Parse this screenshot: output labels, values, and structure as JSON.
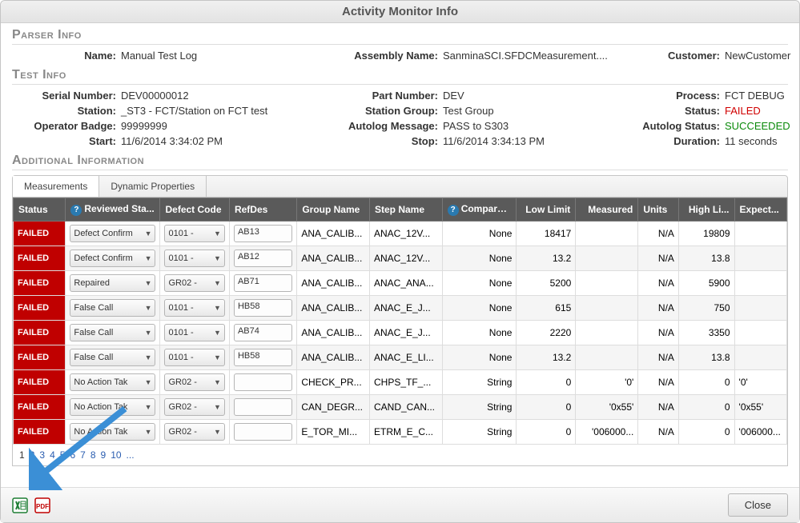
{
  "dialog": {
    "title": "Activity Monitor Info"
  },
  "sections": {
    "parser": "Parser Info",
    "test": "Test Info",
    "additional": "Additional Information"
  },
  "parser": {
    "name_label": "Name:",
    "name": "Manual Test Log",
    "assembly_label": "Assembly Name:",
    "assembly": "SanminaSCI.SFDCMeasurement....",
    "customer_label": "Customer:",
    "customer": "NewCustomer"
  },
  "test": {
    "serial_label": "Serial Number:",
    "serial": "DEV00000012",
    "part_label": "Part Number:",
    "part": "DEV",
    "process_label": "Process:",
    "process": "FCT DEBUG",
    "station_label": "Station:",
    "station": "_ST3 - FCT/Station on FCT test",
    "stationgroup_label": "Station Group:",
    "stationgroup": "Test Group",
    "status_label": "Status:",
    "status": "FAILED",
    "badge_label": "Operator Badge:",
    "badge": "99999999",
    "autolog_msg_label": "Autolog Message:",
    "autolog_msg": "PASS to S303",
    "autolog_status_label": "Autolog Status:",
    "autolog_status": "SUCCEEDED",
    "start_label": "Start:",
    "start": "11/6/2014 3:34:02 PM",
    "stop_label": "Stop:",
    "stop": "11/6/2014 3:34:13 PM",
    "duration_label": "Duration:",
    "duration": "11 seconds"
  },
  "tabs": {
    "measurements": "Measurements",
    "dynamic": "Dynamic Properties"
  },
  "columns": {
    "status": "Status",
    "reviewed": "Reviewed Sta...",
    "defect": "Defect Code",
    "refdes": "RefDes",
    "group": "Group Name",
    "step": "Step Name",
    "comparat": "Comparat...",
    "low": "Low Limit",
    "measured": "Measured",
    "units": "Units",
    "high": "High Li...",
    "expect": "Expect..."
  },
  "column_widths": {
    "status": 62,
    "reviewed": 112,
    "defect": 82,
    "refdes": 80,
    "group": 86,
    "step": 86,
    "comparat": 88,
    "low": 70,
    "measured": 74,
    "units": 48,
    "high": 66,
    "expect": 62
  },
  "status_colors": {
    "failed_bg": "#c00000",
    "failed_fg": "#ffffff"
  },
  "rows": [
    {
      "status": "FAILED",
      "reviewed": "Defect Confirm",
      "defect": "0101 -",
      "refdes": "AB13",
      "group": "ANA_CALIB...",
      "step": "ANAC_12V...",
      "comparat": "None",
      "low": "18417",
      "measured": "",
      "units": "N/A",
      "high": "19809",
      "expect": ""
    },
    {
      "status": "FAILED",
      "reviewed": "Defect Confirm",
      "defect": "0101 -",
      "refdes": "AB12",
      "group": "ANA_CALIB...",
      "step": "ANAC_12V...",
      "comparat": "None",
      "low": "13.2",
      "measured": "",
      "units": "N/A",
      "high": "13.8",
      "expect": ""
    },
    {
      "status": "FAILED",
      "reviewed": "Repaired",
      "defect": "GR02 -",
      "refdes": "AB71",
      "group": "ANA_CALIB...",
      "step": "ANAC_ANA...",
      "comparat": "None",
      "low": "5200",
      "measured": "",
      "units": "N/A",
      "high": "5900",
      "expect": ""
    },
    {
      "status": "FAILED",
      "reviewed": "False Call",
      "defect": "0101 -",
      "refdes": "HB58",
      "group": "ANA_CALIB...",
      "step": "ANAC_E_J...",
      "comparat": "None",
      "low": "615",
      "measured": "",
      "units": "N/A",
      "high": "750",
      "expect": ""
    },
    {
      "status": "FAILED",
      "reviewed": "False Call",
      "defect": "0101 -",
      "refdes": "AB74",
      "group": "ANA_CALIB...",
      "step": "ANAC_E_J...",
      "comparat": "None",
      "low": "2220",
      "measured": "",
      "units": "N/A",
      "high": "3350",
      "expect": ""
    },
    {
      "status": "FAILED",
      "reviewed": "False Call",
      "defect": "0101 -",
      "refdes": "HB58",
      "group": "ANA_CALIB...",
      "step": "ANAC_E_LI...",
      "comparat": "None",
      "low": "13.2",
      "measured": "",
      "units": "N/A",
      "high": "13.8",
      "expect": ""
    },
    {
      "status": "FAILED",
      "reviewed": "No Action Tak",
      "defect": "GR02 -",
      "refdes": "",
      "group": "CHECK_PR...",
      "step": "CHPS_TF_...",
      "comparat": "String",
      "low": "0",
      "measured": "'0'",
      "units": "N/A",
      "high": "0",
      "expect": "'0'"
    },
    {
      "status": "FAILED",
      "reviewed": "No Action Tak",
      "defect": "GR02 -",
      "refdes": "",
      "group": "CAN_DEGR...",
      "step": "CAND_CAN...",
      "comparat": "String",
      "low": "0",
      "measured": "'0x55'",
      "units": "N/A",
      "high": "0",
      "expect": "'0x55'"
    },
    {
      "status": "FAILED",
      "reviewed": "No Action Tak",
      "defect": "GR02 -",
      "refdes": "",
      "group": "E_TOR_MI...",
      "step": "ETRM_E_C...",
      "comparat": "String",
      "low": "0",
      "measured": "'006000...",
      "units": "N/A",
      "high": "0",
      "expect": "'006000..."
    }
  ],
  "pager": {
    "pages": [
      "1",
      "2",
      "3",
      "4",
      "5",
      "6",
      "7",
      "8",
      "9",
      "10",
      "..."
    ],
    "current": 0
  },
  "buttons": {
    "close": "Close"
  },
  "icons": {
    "excel": "excel-icon",
    "pdf": "pdf-icon"
  },
  "colors": {
    "header_bg": "#5a5a5a",
    "failed_text": "#d00000",
    "succeeded_text": "#0a8a0a",
    "link": "#2a5db0",
    "arrow": "#3b8fd6"
  }
}
